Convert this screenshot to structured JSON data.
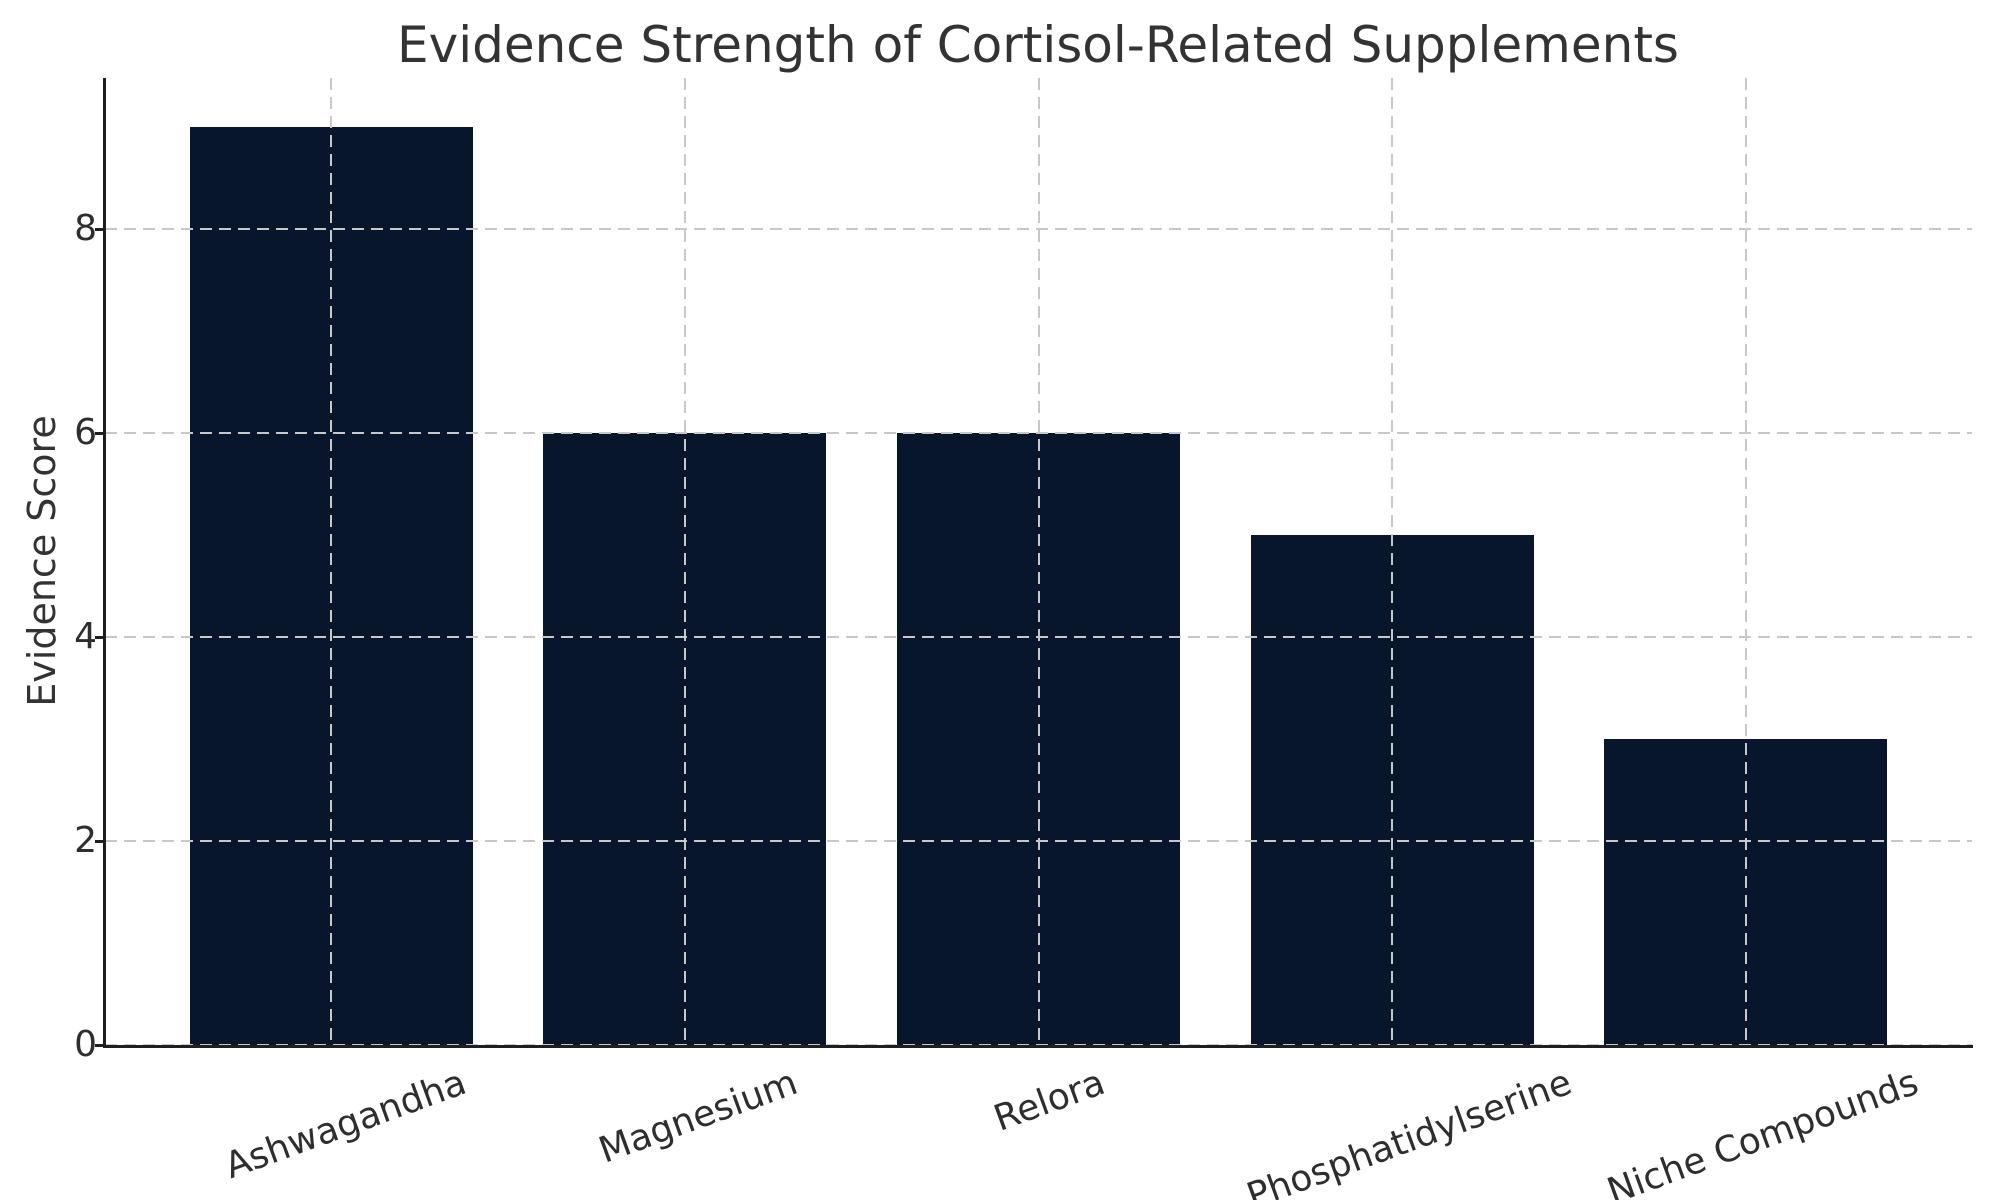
{
  "chart_data": {
    "type": "bar",
    "title": "Evidence Strength of Cortisol-Related Supplements",
    "xlabel": "",
    "ylabel": "Evidence Score",
    "categories": [
      "Ashwagandha",
      "Magnesium",
      "Relora",
      "Phosphatidylserine",
      "Niche Compounds"
    ],
    "values": [
      9,
      6,
      6,
      5,
      3
    ],
    "yticks": [
      0,
      2,
      4,
      6,
      8
    ],
    "ylim": [
      0,
      9.48
    ],
    "grid": "dashed gridlines on both axes, drawn above bars",
    "legend_position": "none",
    "x_tick_rotation_deg": 20
  },
  "colors": {
    "bar": "#07162b",
    "grid": "#c8c8c8",
    "spine": "#1f1f1f",
    "title_text": "#333333",
    "tick_text": "#2e2e2e",
    "background": "#ffffff"
  }
}
